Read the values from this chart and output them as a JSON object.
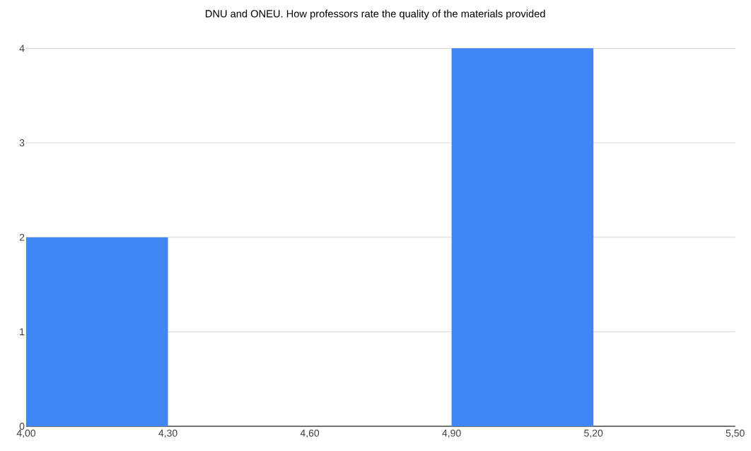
{
  "chart_data": {
    "type": "histogram",
    "title": "DNU and ONEU. How professors rate the quality of the materials provided",
    "bins": [
      4.0,
      4.3,
      4.6,
      4.9,
      5.2,
      5.5
    ],
    "values": [
      2,
      0,
      0,
      4,
      0
    ],
    "color": "#4285f4",
    "xlim": [
      4.0,
      5.5
    ],
    "xticks": [
      {
        "value": 4.0,
        "label": "4,00"
      },
      {
        "value": 4.3,
        "label": "4,30"
      },
      {
        "value": 4.6,
        "label": "4,60"
      },
      {
        "value": 4.9,
        "label": "4,90"
      },
      {
        "value": 5.2,
        "label": "5,20"
      },
      {
        "value": 5.5,
        "label": "5,50"
      }
    ],
    "ylim": [
      0,
      4
    ],
    "yticks": [
      0,
      1,
      2,
      3,
      4
    ],
    "grid": "y"
  }
}
